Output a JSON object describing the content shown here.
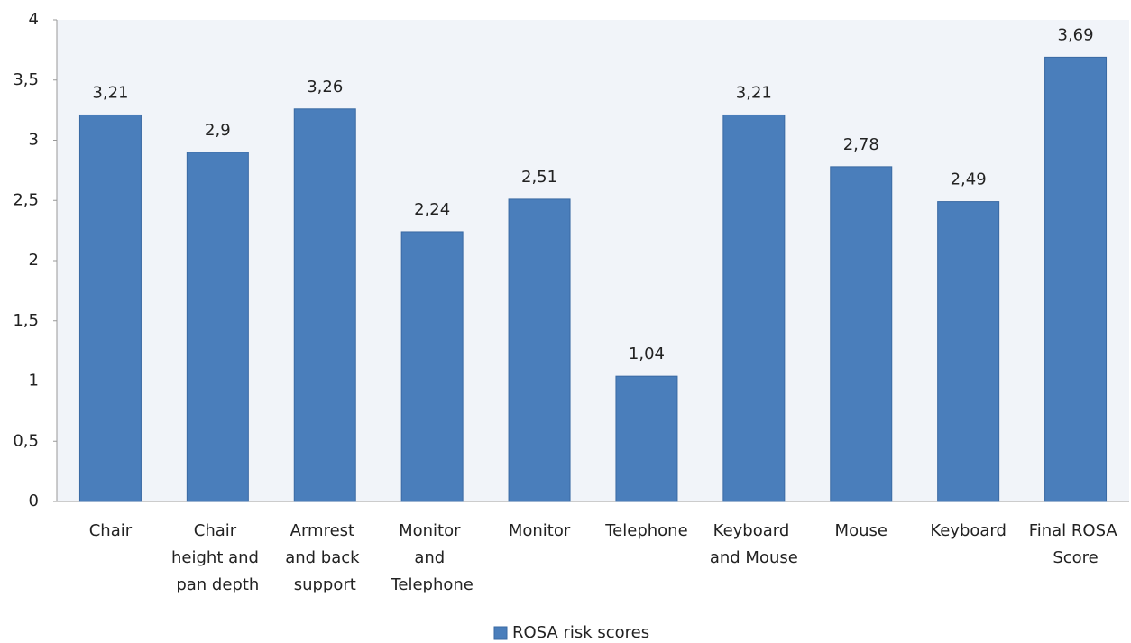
{
  "chart_data": {
    "type": "bar",
    "categories": [
      "Chair",
      "Chair height and pan depth",
      "Armrest and back support",
      "Monitor and Telephone",
      "Monitor",
      "Telephone",
      "Keyboard and Mouse",
      "Mouse",
      "Keyboard",
      "Final ROSA Score"
    ],
    "series": [
      {
        "name": "ROSA risk scores",
        "color": "#4a7ebb",
        "values": [
          3.21,
          2.9,
          3.26,
          2.24,
          2.51,
          1.04,
          3.21,
          2.78,
          2.49,
          3.69
        ],
        "value_labels": [
          "3,21",
          "2,9",
          "3,26",
          "2,24",
          "2,51",
          "1,04",
          "3,21",
          "2,78",
          "2,49",
          "3,69"
        ]
      }
    ],
    "ylim": [
      0,
      4
    ],
    "yticks": [
      0,
      {
        "value": 0.5,
        "label": "0,5"
      },
      1,
      {
        "value": 1.5,
        "label": "1,5"
      },
      2,
      {
        "value": 2.5,
        "label": "2,5"
      },
      3,
      {
        "value": 3.5,
        "label": "3,5"
      },
      4
    ],
    "legend": "bottom"
  }
}
